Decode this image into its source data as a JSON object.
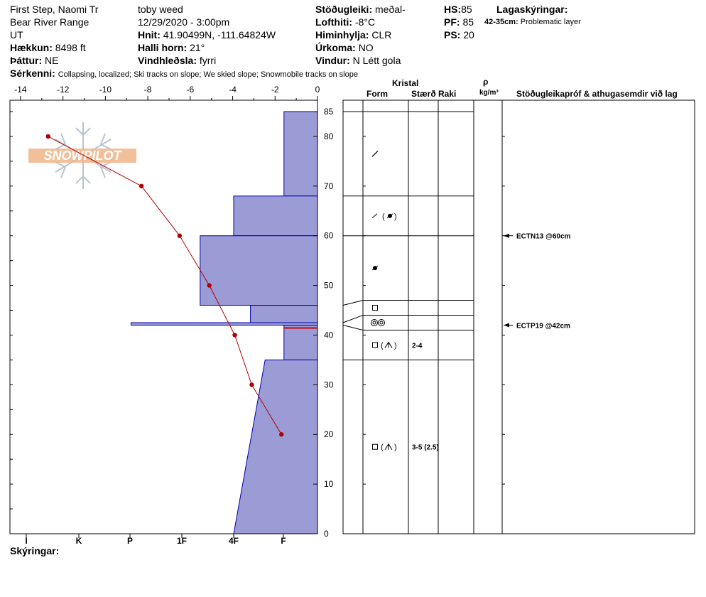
{
  "header": {
    "site": "First Step, Naomi Tr",
    "range": "Bear River Range",
    "state": "UT",
    "elevation_label": "Hækkun:",
    "elevation": "8498 ft",
    "aspect_label": "Þáttur:",
    "aspect": "NE",
    "observer": "toby weed",
    "datetime": "12/29/2020 - 3:00pm",
    "coords_label": "Hnit:",
    "coords": "41.90499N, -111.64824W",
    "slope_label": "Halli horn:",
    "slope": "21°",
    "wind_loading_label": "Vindhleðsla:",
    "wind_loading": "fyrri",
    "stability_label": "Stöðugleiki:",
    "stability": "meðal-",
    "air_temp_label": "Lofthiti:",
    "air_temp": "-8°C",
    "sky_label": "Himinhylja:",
    "sky": "CLR",
    "precip_label": "Úrkoma:",
    "precip": "NO",
    "wind_label": "Vindur:",
    "wind": "N Létt gola",
    "hs_label": "HS:",
    "hs": "85",
    "pf_label": "PF:",
    "pf": "85",
    "ps_label": "PS:",
    "ps": "20",
    "layer_notes_label": "Lagaskýringar:",
    "layer_note_depth": "42-35cm:",
    "layer_note_text": "Problematic layer",
    "features_label": "Sérkenni:",
    "features": "Collapsing, localized;  Ski tracks on slope;  We skied slope;  Snowmobile tracks on slope"
  },
  "columns": {
    "crystal": "Kristal",
    "form": "Form",
    "size": "Stærð",
    "moisture": "Raki",
    "density_symbol": "ρ",
    "density_unit": "kg/m³",
    "tests": "Stöðugleikapróf & athugasemdir við lag"
  },
  "footer": {
    "notes_label": "Skýringar:"
  },
  "logo": {
    "text": "SNOWPILOT"
  },
  "colors": {
    "hardness_fill": "#9b9bd6",
    "hardness_edge": "#0000aa",
    "temp_line": "#b00000",
    "logo": "#e8a070"
  },
  "chart_data": {
    "type": "snow-profile",
    "depth_axis": {
      "range": [
        0,
        85
      ],
      "ticks": [
        0,
        10,
        20,
        30,
        40,
        50,
        60,
        70,
        80,
        85
      ]
    },
    "temperature_axis": {
      "range": [
        -14.5,
        0
      ],
      "ticks": [
        -14,
        -12,
        -10,
        -8,
        -6,
        -4,
        -2,
        0
      ]
    },
    "hardness_scale": [
      "I",
      "K",
      "P",
      "1F",
      "4F",
      "F"
    ],
    "hardness_layers": [
      {
        "top": 85,
        "bottom": 68,
        "hardness": 1.6
      },
      {
        "top": 68,
        "bottom": 60,
        "hardness": 4.0
      },
      {
        "top": 60,
        "bottom": 46,
        "hardness": 5.6
      },
      {
        "top": 46,
        "bottom": 42.5,
        "hardness": 3.2
      },
      {
        "top": 42.5,
        "bottom": 42,
        "hardness": 8.9
      },
      {
        "top": 42,
        "bottom": 35,
        "hardness": 1.6
      },
      {
        "top": 35,
        "bottom": 0,
        "hardness_top": 2.5,
        "hardness_bottom": 4.0
      }
    ],
    "temperature_profile": [
      {
        "depth": 80,
        "temp": -12.7
      },
      {
        "depth": 70,
        "temp": -8.3
      },
      {
        "depth": 60,
        "temp": -6.5
      },
      {
        "depth": 50,
        "temp": -5.1
      },
      {
        "depth": 40,
        "temp": -3.9
      },
      {
        "depth": 30,
        "temp": -3.1
      },
      {
        "depth": 20,
        "temp": -1.7
      }
    ],
    "grain_layers": [
      {
        "top": 85,
        "bottom": 68,
        "at": 76.5,
        "form": "decomposing",
        "size": ""
      },
      {
        "top": 68,
        "bottom": 60,
        "at": 64,
        "form": "decomposing-rounded",
        "size": ""
      },
      {
        "top": 60,
        "bottom": 47,
        "at": 53.5,
        "form": "rounded",
        "size": ""
      },
      {
        "top": 47,
        "bottom": 44,
        "at": 45.5,
        "form": "faceted",
        "size": ""
      },
      {
        "top": 44,
        "bottom": 41,
        "at": 42.5,
        "form": "melt-freeze",
        "size": ""
      },
      {
        "top": 41,
        "bottom": 35,
        "at": 38,
        "form": "faceted-depth-hoar",
        "size": "2-4"
      },
      {
        "top": 35,
        "bottom": 0,
        "at": 17.5,
        "form": "faceted-depth-hoar",
        "size": "3-5 (2.5)"
      }
    ],
    "stability_tests": [
      {
        "depth": 60,
        "label": "ECTN13 @60cm"
      },
      {
        "depth": 42,
        "label": "ECTP19 @42cm"
      }
    ],
    "problem_layer": {
      "top": 42,
      "bottom": 35
    }
  }
}
